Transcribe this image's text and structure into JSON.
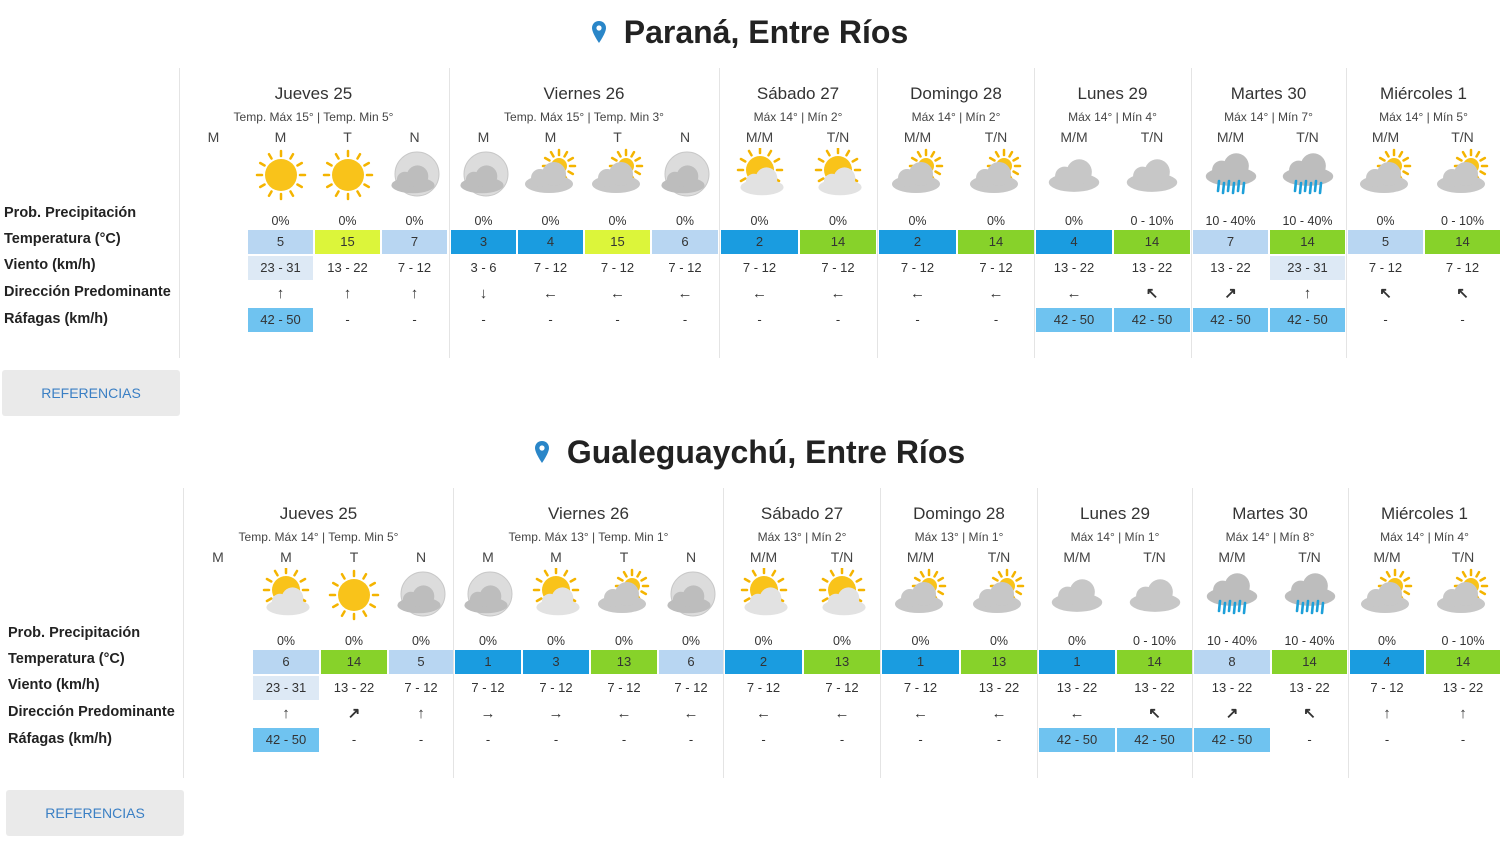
{
  "colors": {
    "t_light": "#b8d6f2",
    "t_blue": "#1a9ce0",
    "t_yellow": "#dcf53a",
    "t_green": "#87d22a",
    "gust_blue": "#6fc3f0",
    "wind_light": "#dde9f5",
    "accent": "#2a86c8"
  },
  "labels": {
    "prob": "Prob. Precipitación",
    "temp": "Temperatura (°C)",
    "wind": "Viento (km/h)",
    "dir": "Dirección Predominante",
    "gust": "Ráfagas (km/h)"
  },
  "button_label": "REFERENCIAS",
  "sections": [
    {
      "title": "Paraná, Entre Ríos",
      "days": [
        {
          "name": "Jueves 25",
          "temps": "Temp. Máx 15° | Temp. Min 5°",
          "cols": [
            {
              "p": "M",
              "icon": "none",
              "prob": "",
              "t": "",
              "tc": "",
              "w": "",
              "wc": "",
              "d": "",
              "g": "",
              "gc": ""
            },
            {
              "p": "M",
              "icon": "sun",
              "prob": "0%",
              "t": "5",
              "tc": "light",
              "w": "23 - 31",
              "wc": "light",
              "d": "up",
              "g": "42 - 50",
              "gc": "blue"
            },
            {
              "p": "T",
              "icon": "sun",
              "prob": "0%",
              "t": "15",
              "tc": "yellow",
              "w": "13 - 22",
              "wc": "",
              "d": "up",
              "g": "-",
              "gc": ""
            },
            {
              "p": "N",
              "icon": "moon-cloud",
              "prob": "0%",
              "t": "7",
              "tc": "light",
              "w": "7 - 12",
              "wc": "",
              "d": "up",
              "g": "-",
              "gc": ""
            }
          ]
        },
        {
          "name": "Viernes 26",
          "temps": "Temp. Máx 15° | Temp. Min 3°",
          "cols": [
            {
              "p": "M",
              "icon": "moon-cloud",
              "prob": "0%",
              "t": "3",
              "tc": "blue",
              "w": "3 - 6",
              "wc": "",
              "d": "down",
              "g": "-",
              "gc": ""
            },
            {
              "p": "M",
              "icon": "cloud-sun",
              "prob": "0%",
              "t": "4",
              "tc": "blue",
              "w": "7 - 12",
              "wc": "",
              "d": "left",
              "g": "-",
              "gc": ""
            },
            {
              "p": "T",
              "icon": "cloud-sun",
              "prob": "0%",
              "t": "15",
              "tc": "yellow",
              "w": "7 - 12",
              "wc": "",
              "d": "left",
              "g": "-",
              "gc": ""
            },
            {
              "p": "N",
              "icon": "moon-cloud",
              "prob": "0%",
              "t": "6",
              "tc": "light",
              "w": "7 - 12",
              "wc": "",
              "d": "left",
              "g": "-",
              "gc": ""
            }
          ]
        },
        {
          "name": "Sábado 27",
          "temps": "Máx 14° | Mín 2°",
          "cols": [
            {
              "p": "M/M",
              "icon": "sun-cloud",
              "prob": "0%",
              "t": "2",
              "tc": "blue",
              "w": "7 - 12",
              "wc": "",
              "d": "left",
              "g": "-",
              "gc": ""
            },
            {
              "p": "T/N",
              "icon": "sun-cloud",
              "prob": "0%",
              "t": "14",
              "tc": "green",
              "w": "7 - 12",
              "wc": "",
              "d": "left",
              "g": "-",
              "gc": ""
            }
          ]
        },
        {
          "name": "Domingo 28",
          "temps": "Máx 14° | Mín 2°",
          "cols": [
            {
              "p": "M/M",
              "icon": "cloud-sun",
              "prob": "0%",
              "t": "2",
              "tc": "blue",
              "w": "7 - 12",
              "wc": "",
              "d": "left",
              "g": "-",
              "gc": ""
            },
            {
              "p": "T/N",
              "icon": "cloud-sun",
              "prob": "0%",
              "t": "14",
              "tc": "green",
              "w": "7 - 12",
              "wc": "",
              "d": "left",
              "g": "-",
              "gc": ""
            }
          ]
        },
        {
          "name": "Lunes 29",
          "temps": "Máx 14° | Mín 4°",
          "cols": [
            {
              "p": "M/M",
              "icon": "cloud",
              "prob": "0%",
              "t": "4",
              "tc": "blue",
              "w": "13 - 22",
              "wc": "",
              "d": "left",
              "g": "42 - 50",
              "gc": "blue"
            },
            {
              "p": "T/N",
              "icon": "cloud",
              "prob": "0 - 10%",
              "t": "14",
              "tc": "green",
              "w": "13 - 22",
              "wc": "",
              "d": "upleft",
              "g": "42 - 50",
              "gc": "blue"
            }
          ]
        },
        {
          "name": "Martes 30",
          "temps": "Máx 14° | Mín 7°",
          "cols": [
            {
              "p": "M/M",
              "icon": "rain",
              "prob": "10 - 40%",
              "t": "7",
              "tc": "light",
              "w": "13 - 22",
              "wc": "",
              "d": "upright",
              "g": "42 - 50",
              "gc": "blue"
            },
            {
              "p": "T/N",
              "icon": "rain",
              "prob": "10 - 40%",
              "t": "14",
              "tc": "green",
              "w": "23 - 31",
              "wc": "light",
              "d": "up",
              "g": "42 - 50",
              "gc": "blue"
            }
          ]
        },
        {
          "name": "Miércoles 1",
          "temps": "Máx 14° | Mín 5°",
          "cols": [
            {
              "p": "M/M",
              "icon": "cloud-sun",
              "prob": "0%",
              "t": "5",
              "tc": "light",
              "w": "7 - 12",
              "wc": "",
              "d": "upleft",
              "g": "-",
              "gc": ""
            },
            {
              "p": "T/N",
              "icon": "cloud-sun",
              "prob": "0 - 10%",
              "t": "14",
              "tc": "green",
              "w": "7 - 12",
              "wc": "",
              "d": "upleft",
              "g": "-",
              "gc": ""
            }
          ]
        }
      ]
    },
    {
      "title": "Gualeguaychú, Entre Ríos",
      "days": [
        {
          "name": "Jueves 25",
          "temps": "Temp. Máx 14° | Temp. Min 5°",
          "cols": [
            {
              "p": "M",
              "icon": "none",
              "prob": "",
              "t": "",
              "tc": "",
              "w": "",
              "wc": "",
              "d": "",
              "g": "",
              "gc": ""
            },
            {
              "p": "M",
              "icon": "sun-cloud",
              "prob": "0%",
              "t": "6",
              "tc": "light",
              "w": "23 - 31",
              "wc": "light",
              "d": "up",
              "g": "42 - 50",
              "gc": "blue"
            },
            {
              "p": "T",
              "icon": "sun",
              "prob": "0%",
              "t": "14",
              "tc": "green",
              "w": "13 - 22",
              "wc": "",
              "d": "upright",
              "g": "-",
              "gc": ""
            },
            {
              "p": "N",
              "icon": "moon-cloud",
              "prob": "0%",
              "t": "5",
              "tc": "light",
              "w": "7 - 12",
              "wc": "",
              "d": "up",
              "g": "-",
              "gc": ""
            }
          ]
        },
        {
          "name": "Viernes 26",
          "temps": "Temp. Máx 13° | Temp. Min 1°",
          "cols": [
            {
              "p": "M",
              "icon": "moon-cloud",
              "prob": "0%",
              "t": "1",
              "tc": "blue",
              "w": "7 - 12",
              "wc": "",
              "d": "right",
              "g": "-",
              "gc": ""
            },
            {
              "p": "M",
              "icon": "sun-cloud",
              "prob": "0%",
              "t": "3",
              "tc": "blue",
              "w": "7 - 12",
              "wc": "",
              "d": "right",
              "g": "-",
              "gc": ""
            },
            {
              "p": "T",
              "icon": "cloud-sun",
              "prob": "0%",
              "t": "13",
              "tc": "green",
              "w": "7 - 12",
              "wc": "",
              "d": "left",
              "g": "-",
              "gc": ""
            },
            {
              "p": "N",
              "icon": "moon-cloud",
              "prob": "0%",
              "t": "6",
              "tc": "light",
              "w": "7 - 12",
              "wc": "",
              "d": "left",
              "g": "-",
              "gc": ""
            }
          ]
        },
        {
          "name": "Sábado 27",
          "temps": "Máx 13° | Mín 2°",
          "cols": [
            {
              "p": "M/M",
              "icon": "sun-cloud",
              "prob": "0%",
              "t": "2",
              "tc": "blue",
              "w": "7 - 12",
              "wc": "",
              "d": "left",
              "g": "-",
              "gc": ""
            },
            {
              "p": "T/N",
              "icon": "sun-cloud",
              "prob": "0%",
              "t": "13",
              "tc": "green",
              "w": "7 - 12",
              "wc": "",
              "d": "left",
              "g": "-",
              "gc": ""
            }
          ]
        },
        {
          "name": "Domingo 28",
          "temps": "Máx 13° | Mín 1°",
          "cols": [
            {
              "p": "M/M",
              "icon": "cloud-sun",
              "prob": "0%",
              "t": "1",
              "tc": "blue",
              "w": "7 - 12",
              "wc": "",
              "d": "left",
              "g": "-",
              "gc": ""
            },
            {
              "p": "T/N",
              "icon": "cloud-sun",
              "prob": "0%",
              "t": "13",
              "tc": "green",
              "w": "13 - 22",
              "wc": "",
              "d": "left",
              "g": "-",
              "gc": ""
            }
          ]
        },
        {
          "name": "Lunes 29",
          "temps": "Máx 14° | Mín 1°",
          "cols": [
            {
              "p": "M/M",
              "icon": "cloud",
              "prob": "0%",
              "t": "1",
              "tc": "blue",
              "w": "13 - 22",
              "wc": "",
              "d": "left",
              "g": "42 - 50",
              "gc": "blue"
            },
            {
              "p": "T/N",
              "icon": "cloud",
              "prob": "0 - 10%",
              "t": "14",
              "tc": "green",
              "w": "13 - 22",
              "wc": "",
              "d": "upleft",
              "g": "42 - 50",
              "gc": "blue"
            }
          ]
        },
        {
          "name": "Martes 30",
          "temps": "Máx 14° | Mín 8°",
          "cols": [
            {
              "p": "M/M",
              "icon": "rain",
              "prob": "10 - 40%",
              "t": "8",
              "tc": "light",
              "w": "13 - 22",
              "wc": "",
              "d": "upright",
              "g": "42 - 50",
              "gc": "blue"
            },
            {
              "p": "T/N",
              "icon": "rain",
              "prob": "10 - 40%",
              "t": "14",
              "tc": "green",
              "w": "13 - 22",
              "wc": "",
              "d": "upleft",
              "g": "-",
              "gc": ""
            }
          ]
        },
        {
          "name": "Miércoles 1",
          "temps": "Máx 14° | Mín 4°",
          "cols": [
            {
              "p": "M/M",
              "icon": "cloud-sun",
              "prob": "0%",
              "t": "4",
              "tc": "blue",
              "w": "7 - 12",
              "wc": "",
              "d": "up",
              "g": "-",
              "gc": ""
            },
            {
              "p": "T/N",
              "icon": "cloud-sun",
              "prob": "0 - 10%",
              "t": "14",
              "tc": "green",
              "w": "13 - 22",
              "wc": "",
              "d": "up",
              "g": "-",
              "gc": ""
            }
          ]
        }
      ]
    }
  ]
}
